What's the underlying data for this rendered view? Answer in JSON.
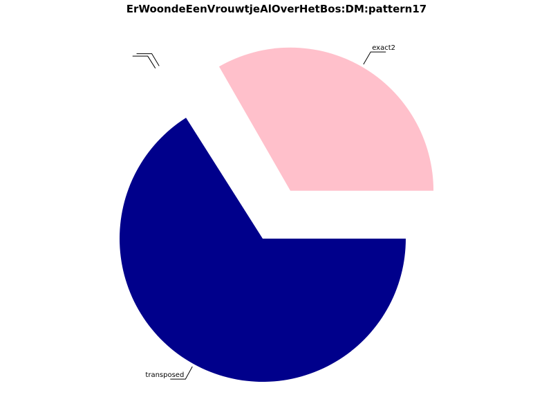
{
  "chart_data": {
    "type": "pie",
    "title": "ErWoondeEenVrouwtjeAlOverHetBos:DM:pattern17",
    "slices": [
      {
        "label": "exact2",
        "value": 33.3,
        "color": "#FFC0CB",
        "exploded": true
      },
      {
        "label": "",
        "value": 0.6,
        "color": "#FFFFFF",
        "exploded": true
      },
      {
        "label": "",
        "value": 0.1,
        "color": "#FFFFFF",
        "exploded": true
      },
      {
        "label": "transposed",
        "value": 66.0,
        "color": "#00008B",
        "exploded": false
      }
    ],
    "start_angle_deg": 0,
    "direction": "counterclockwise"
  }
}
